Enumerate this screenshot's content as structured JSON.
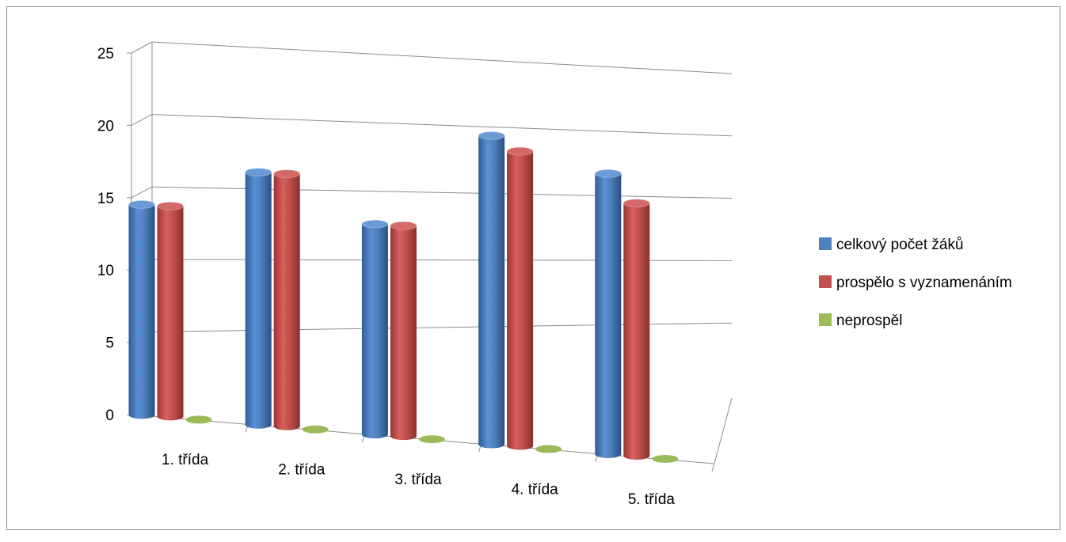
{
  "chart_data": {
    "type": "bar",
    "categories": [
      "1. třída",
      "2. třída",
      "3. třída",
      "4. třída",
      "5. třída"
    ],
    "series": [
      {
        "name": "celkový počet žáků",
        "values": [
          15,
          18,
          15,
          22,
          20
        ],
        "color": "#4f81bd"
      },
      {
        "name": "prospělo s vyznamenáním",
        "values": [
          15,
          18,
          15,
          21,
          18
        ],
        "color": "#c0504d"
      },
      {
        "name": "neprospěl",
        "values": [
          0,
          0,
          0,
          0,
          0
        ],
        "color": "#9bbb59"
      }
    ],
    "yticks": [
      "0",
      "5",
      "10",
      "15",
      "20",
      "25"
    ],
    "ylim": [
      0,
      25
    ],
    "grid": true,
    "legend_position": "right",
    "style": "3d-cylinder"
  }
}
